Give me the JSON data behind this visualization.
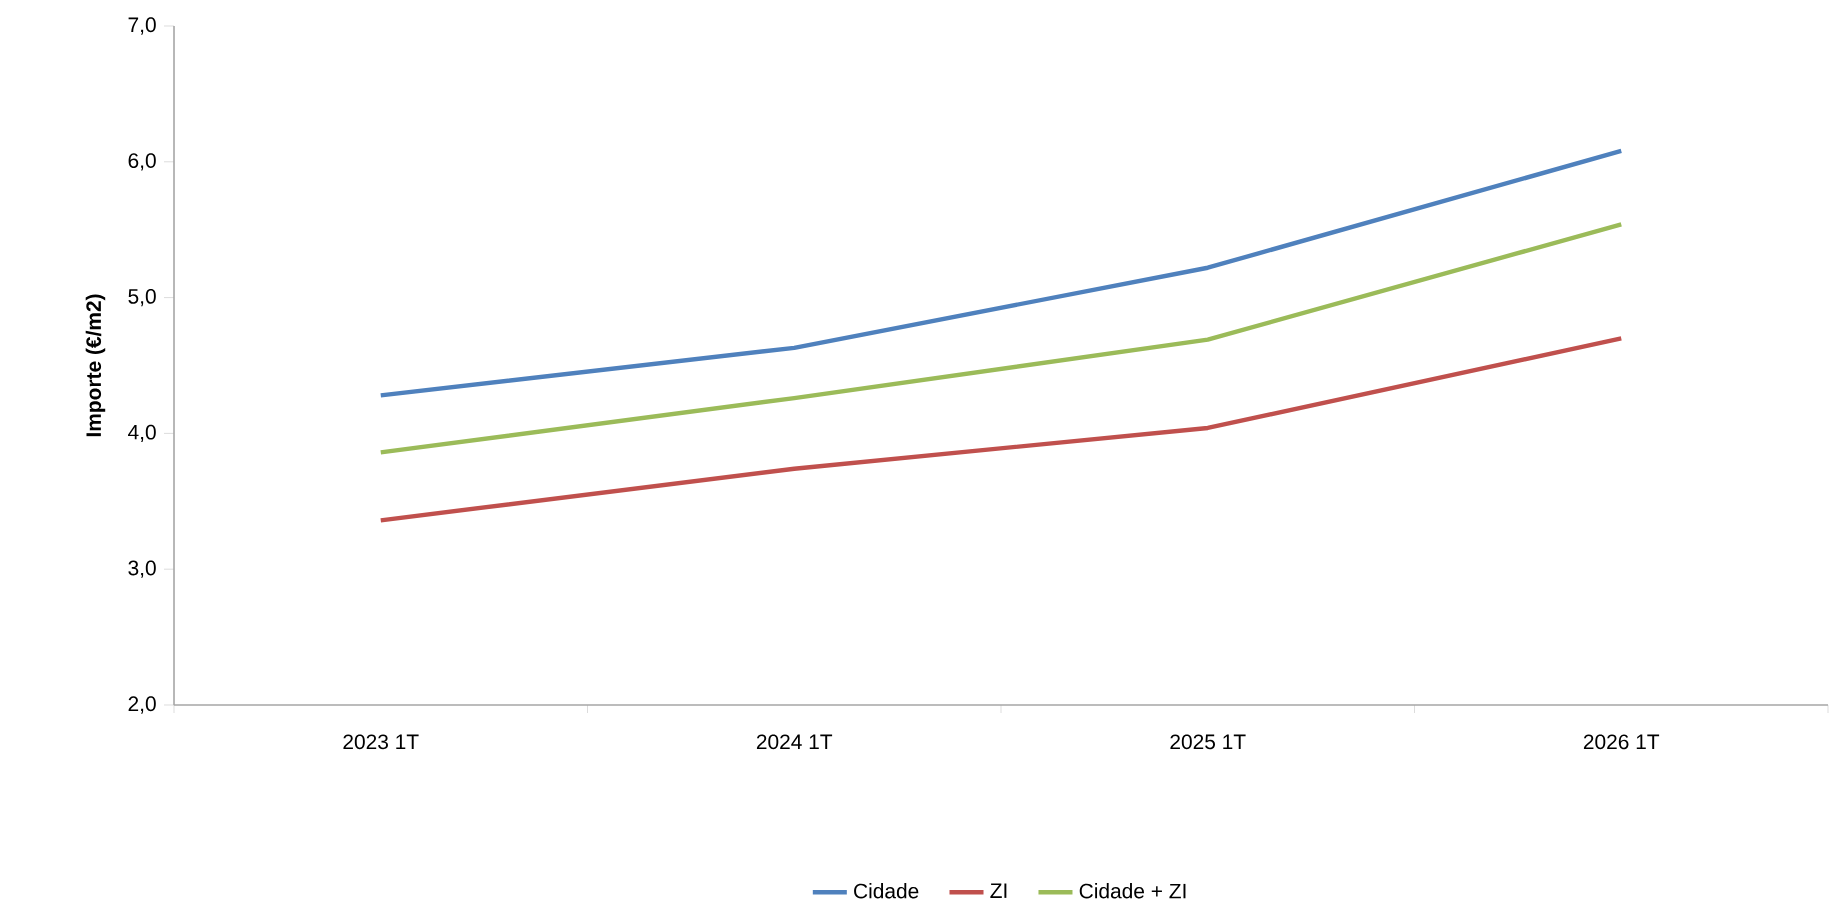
{
  "chart_data": {
    "type": "line",
    "ylabel": "Importe (€/m2)",
    "categories": [
      "2023 1T",
      "2024 1T",
      "2025 1T",
      "2026 1T"
    ],
    "series": [
      {
        "name": "Cidade",
        "color": "#4f81bd",
        "values": [
          4.28,
          4.63,
          5.22,
          6.08
        ]
      },
      {
        "name": "ZI",
        "color": "#c0504d",
        "values": [
          3.36,
          3.74,
          4.04,
          4.7
        ]
      },
      {
        "name": "Cidade + ZI",
        "color": "#9bbb59",
        "values": [
          3.86,
          4.26,
          4.69,
          5.54
        ]
      }
    ],
    "ylim": [
      2,
      7
    ],
    "yticks": [
      {
        "value": 2,
        "label": "2,0"
      },
      {
        "value": 3,
        "label": "3,0"
      },
      {
        "value": 4,
        "label": "4,0"
      },
      {
        "value": 5,
        "label": "5,0"
      },
      {
        "value": 6,
        "label": "6,0"
      },
      {
        "value": 7,
        "label": "7,0"
      }
    ],
    "grid": false,
    "legend": "bottom",
    "marker": "none",
    "line_style": "solid"
  }
}
